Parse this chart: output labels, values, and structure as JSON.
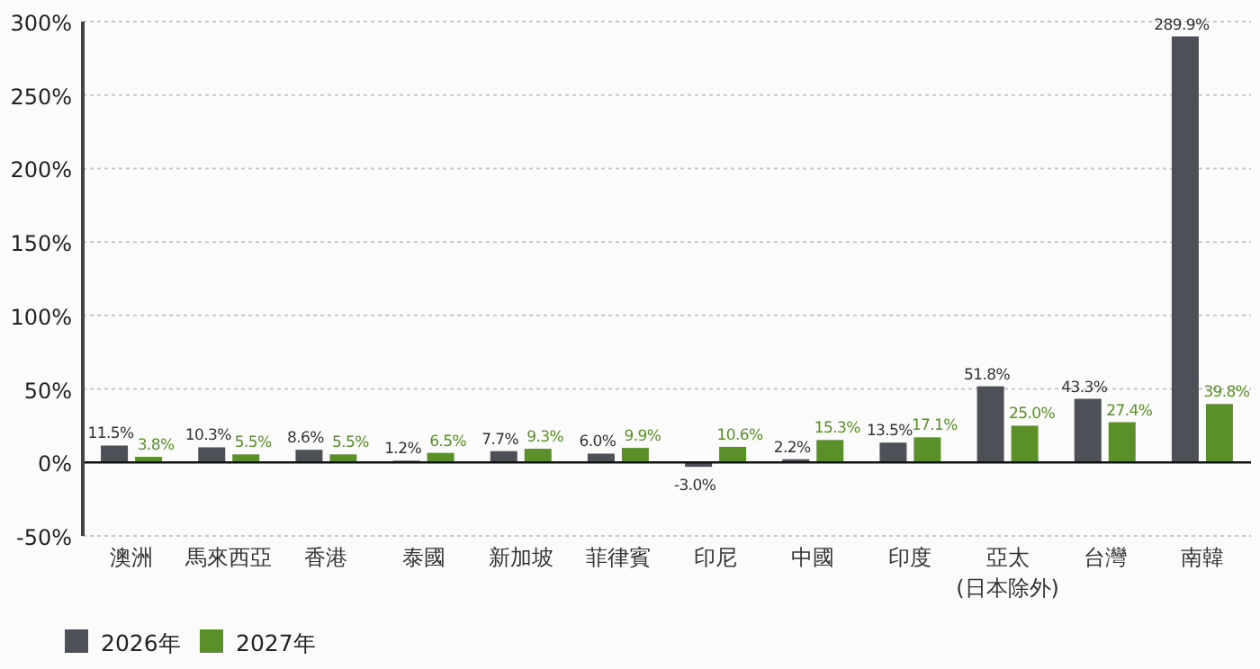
{
  "chart_data": {
    "type": "bar",
    "categories": [
      "澳洲",
      "馬來西亞",
      "香港",
      "泰國",
      "新加坡",
      "菲律賓",
      "印尼",
      "中國",
      "印度",
      "亞太\n(日本除外)",
      "台灣",
      "南韓"
    ],
    "series": [
      {
        "name": "2026年",
        "color": "#4d5157",
        "values": [
          11.5,
          10.3,
          8.6,
          1.2,
          7.7,
          6.0,
          -3.0,
          2.2,
          13.5,
          51.8,
          43.3,
          289.9
        ],
        "value_labels": [
          "11.5%",
          "10.3%",
          "8.6%",
          "1.2%",
          "7.7%",
          "6.0%",
          "-3.0%",
          "2.2%",
          "13.5%",
          "51.8%",
          "43.3%",
          "289.9%"
        ]
      },
      {
        "name": "2027年",
        "color": "#5b8f2a",
        "values": [
          3.8,
          5.5,
          5.5,
          6.5,
          9.3,
          9.9,
          10.6,
          15.3,
          17.1,
          25.0,
          27.4,
          39.8
        ],
        "value_labels": [
          "3.8%",
          "5.5%",
          "5.5%",
          "6.5%",
          "9.3%",
          "9.9%",
          "10.6%",
          "15.3%",
          "17.1%",
          "25.0%",
          "27.4%",
          "39.8%"
        ]
      }
    ],
    "ylim": [
      -50,
      300
    ],
    "yticks": [
      {
        "value": 300,
        "label": "300%"
      },
      {
        "value": 250,
        "label": "250%"
      },
      {
        "value": 200,
        "label": "200%"
      },
      {
        "value": 150,
        "label": "150%"
      },
      {
        "value": 100,
        "label": "100%"
      },
      {
        "value": 50,
        "label": "50%"
      },
      {
        "value": 0,
        "label": "0%"
      },
      {
        "value": -50,
        "label": "-50%"
      }
    ],
    "grid": "y",
    "legend": "bottom left"
  }
}
